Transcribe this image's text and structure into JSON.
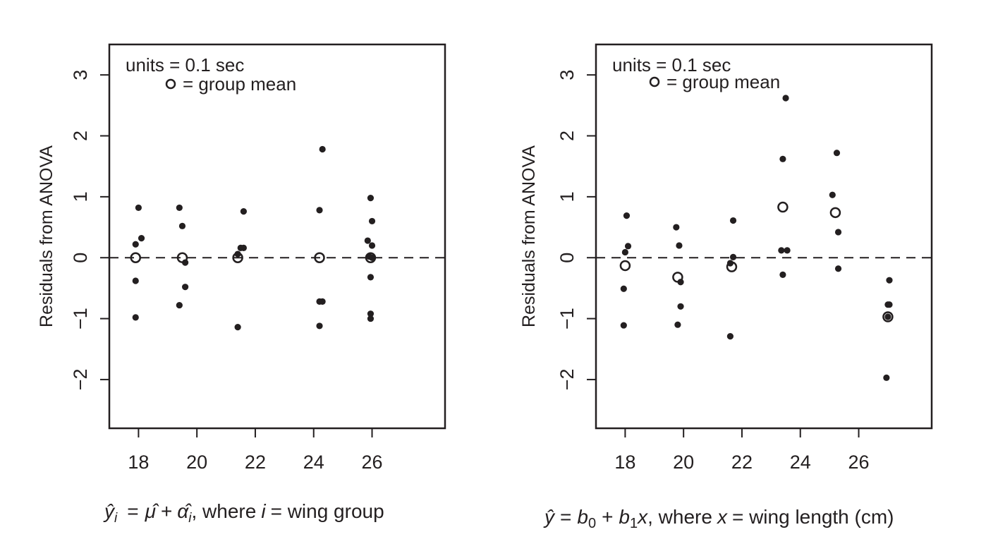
{
  "chart_data": [
    {
      "type": "scatter",
      "title": "",
      "ylabel": "Residuals from ANOVA",
      "xlim": [
        17,
        28.5
      ],
      "ylim": [
        -2.8,
        3.5
      ],
      "xticks": [
        18,
        20,
        22,
        24,
        26
      ],
      "yticks": [
        -2,
        -1,
        0,
        1,
        2,
        3
      ],
      "x_tick_labels": [
        "18",
        "20",
        "22",
        "24",
        "26"
      ],
      "y_tick_labels": [
        "−2",
        "−1",
        "0",
        "1",
        "2",
        "3"
      ],
      "reference_line": {
        "y": 0,
        "style": "dashed"
      },
      "legend": {
        "placement": "top-left",
        "line1": "units = 0.1 sec",
        "line2": "= group mean"
      },
      "xlabel": {
        "yhat": "ŷ",
        "sub_i": "i",
        "eq": "=",
        "muhat": "μ̂",
        "plus": "+",
        "alphahat": "α̂",
        "sub_i2": "i",
        "where": ", where",
        "i": "i",
        "rest": "= wing group"
      },
      "series": [
        {
          "name": "residuals",
          "marker": "filled-circle",
          "points": [
            [
              18.0,
              0.82
            ],
            [
              18.1,
              0.32
            ],
            [
              17.9,
              0.22
            ],
            [
              17.9,
              -0.38
            ],
            [
              17.9,
              -0.98
            ],
            [
              19.4,
              0.82
            ],
            [
              19.5,
              0.52
            ],
            [
              19.6,
              -0.08
            ],
            [
              19.6,
              -0.48
            ],
            [
              19.4,
              -0.78
            ],
            [
              21.6,
              0.76
            ],
            [
              21.5,
              0.16
            ],
            [
              21.6,
              0.16
            ],
            [
              21.4,
              0.06
            ],
            [
              21.4,
              -1.14
            ],
            [
              24.3,
              1.78
            ],
            [
              24.2,
              0.78
            ],
            [
              24.2,
              -0.72
            ],
            [
              24.3,
              -0.72
            ],
            [
              24.2,
              -1.12
            ],
            [
              25.95,
              0.98
            ],
            [
              26.0,
              0.6
            ],
            [
              25.85,
              0.28
            ],
            [
              26.0,
              0.2
            ],
            [
              25.9,
              0.02
            ],
            [
              26.0,
              0.0
            ],
            [
              25.95,
              -0.32
            ],
            [
              25.95,
              -0.92
            ],
            [
              25.95,
              -1.0
            ]
          ]
        },
        {
          "name": "group mean",
          "marker": "open-circle",
          "points": [
            [
              17.9,
              0
            ],
            [
              19.5,
              0
            ],
            [
              21.4,
              0
            ],
            [
              24.2,
              0
            ],
            [
              25.95,
              0
            ]
          ]
        }
      ]
    },
    {
      "type": "scatter",
      "title": "",
      "ylabel": "Residuals from ANOVA",
      "xlim": [
        17,
        28.5
      ],
      "ylim": [
        -2.8,
        3.5
      ],
      "xticks": [
        18,
        20,
        22,
        24,
        26
      ],
      "yticks": [
        -2,
        -1,
        0,
        1,
        2,
        3
      ],
      "x_tick_labels": [
        "18",
        "20",
        "22",
        "24",
        "26"
      ],
      "y_tick_labels": [
        "−2",
        "−1",
        "0",
        "1",
        "2",
        "3"
      ],
      "reference_line": {
        "y": 0,
        "style": "dashed"
      },
      "legend": {
        "placement": "top-left",
        "line1": "units = 0.1 sec",
        "line2": "= group mean"
      },
      "xlabel": {
        "yhat": "ŷ",
        "eq": "=",
        "b0": "b",
        "b0sub": "0",
        "plus": "+",
        "b1": "b",
        "b1sub": "1",
        "x": "x",
        "where": ", where",
        "x2": "x",
        "rest": "= wing length (cm)"
      },
      "series": [
        {
          "name": "residuals",
          "marker": "filled-circle",
          "points": [
            [
              18.05,
              0.69
            ],
            [
              18.1,
              0.19
            ],
            [
              18.0,
              0.09
            ],
            [
              17.95,
              -0.51
            ],
            [
              17.95,
              -1.11
            ],
            [
              19.75,
              0.5
            ],
            [
              19.85,
              0.2
            ],
            [
              19.9,
              -0.4
            ],
            [
              19.9,
              -0.8
            ],
            [
              19.8,
              -1.1
            ],
            [
              21.7,
              0.61
            ],
            [
              21.7,
              0.01
            ],
            [
              21.6,
              -0.09
            ],
            [
              21.6,
              -1.29
            ],
            [
              23.5,
              2.62
            ],
            [
              23.4,
              1.62
            ],
            [
              23.35,
              0.12
            ],
            [
              23.55,
              0.12
            ],
            [
              23.4,
              -0.28
            ],
            [
              25.25,
              1.72
            ],
            [
              25.1,
              1.03
            ],
            [
              25.3,
              0.42
            ],
            [
              25.3,
              -0.18
            ],
            [
              27.05,
              -0.37
            ],
            [
              27.0,
              -0.77
            ],
            [
              27.05,
              -0.77
            ],
            [
              27.0,
              -0.97
            ],
            [
              26.95,
              -1.97
            ]
          ]
        },
        {
          "name": "group mean",
          "marker": "open-circle",
          "points": [
            [
              18.0,
              -0.13
            ],
            [
              19.8,
              -0.32
            ],
            [
              21.65,
              -0.15
            ],
            [
              23.4,
              0.83
            ],
            [
              25.2,
              0.74
            ],
            [
              27.0,
              -0.97
            ]
          ]
        }
      ]
    }
  ]
}
